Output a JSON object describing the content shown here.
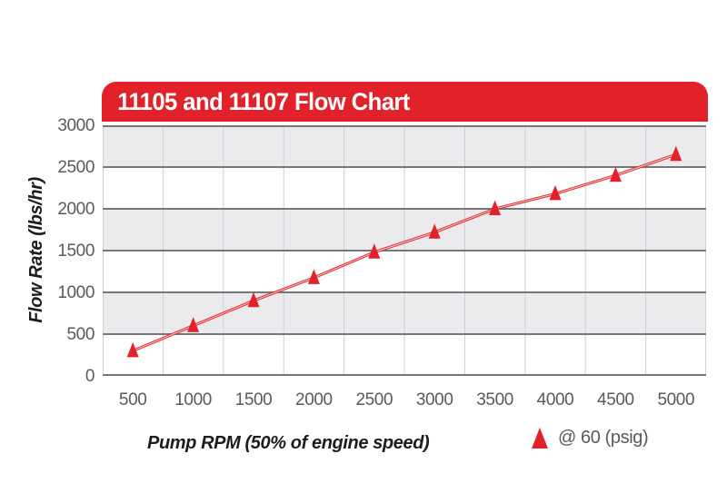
{
  "header": {
    "title": "11105 and 11107 Flow Chart"
  },
  "colors": {
    "accent_red": "#e2222a",
    "band_gray": "#ebebee",
    "band_white": "#ffffff",
    "grid_major": "#76777a",
    "grid_minor": "#cfd0d3",
    "tick_text": "#595a5d",
    "axis_title_text": "#1d1d1f",
    "title_text": "#ffffff"
  },
  "chart_data": {
    "type": "line",
    "title": "11105 and 11107 Flow Chart",
    "xlabel": "Pump RPM (50% of engine speed)",
    "ylabel": "Flow Rate (lbs/hr)",
    "x_axis_type": "categorical",
    "x": [
      500,
      1000,
      1500,
      2000,
      2500,
      3000,
      3500,
      4000,
      4500,
      5000
    ],
    "xticklabels": [
      "500",
      "1000",
      "1500",
      "2000",
      "2500",
      "3000",
      "3500",
      "4000",
      "4500",
      "5000"
    ],
    "yticks": [
      0,
      500,
      1000,
      1500,
      2000,
      2500,
      3000
    ],
    "ylim": [
      0,
      3000
    ],
    "series": [
      {
        "name": "@ 60 (psig)",
        "marker": "triangle-up",
        "color": "#e2222a",
        "line_style": "double-stroke",
        "values": [
          300,
          600,
          900,
          1175,
          1480,
          1720,
          2000,
          2180,
          2400,
          2650
        ]
      }
    ],
    "grid": {
      "horizontal": "dark line every 500 units",
      "vertical": "light line at each category boundary"
    },
    "background_bands": "alternating gray/white every 500 units, gray at top",
    "legend_position": "below chart, right side"
  },
  "legend": {
    "marker_icon": "red-triangle-up",
    "label": "@ 60 (psig)"
  }
}
